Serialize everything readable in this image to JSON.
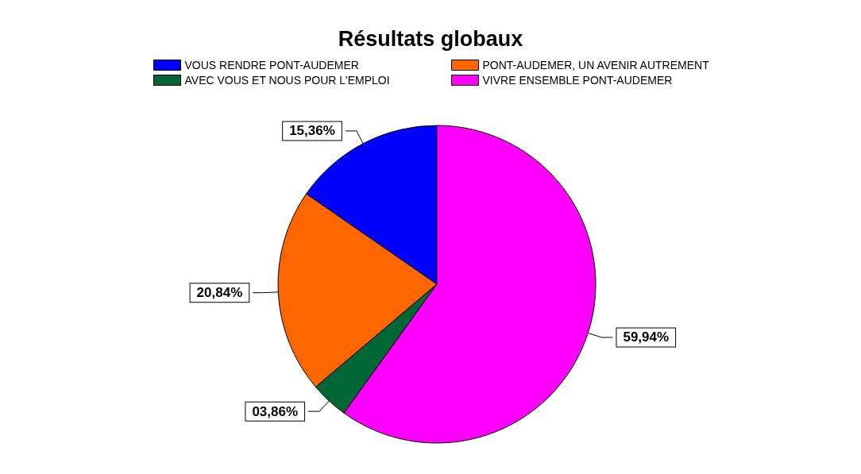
{
  "chart_data": {
    "type": "pie",
    "title": "Résultats globaux",
    "categories": [
      "VOUS RENDRE PONT-AUDEMER",
      "PONT-AUDEMER, UN AVENIR AUTREMENT",
      "AVEC VOUS ET NOUS POUR L'EMPLOI",
      "VIVRE ENSEMBLE PONT-AUDEMER"
    ],
    "values": [
      15.36,
      20.84,
      3.86,
      59.94
    ],
    "value_labels": [
      "15,36%",
      "20,84%",
      "03,86%",
      "59,94%"
    ],
    "colors": [
      "#0000ff",
      "#ff6600",
      "#006633",
      "#ff00ff"
    ],
    "legend": "top"
  }
}
